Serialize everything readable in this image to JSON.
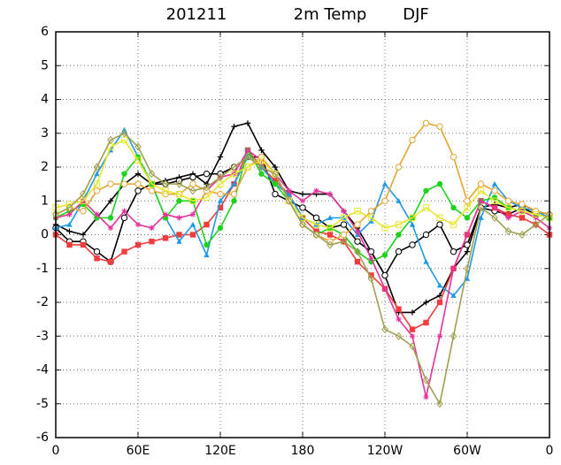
{
  "chart_data": {
    "type": "line",
    "title_parts": [
      "201211",
      "2m Temp",
      "DJF"
    ],
    "x": [
      0,
      10,
      20,
      30,
      40,
      50,
      60,
      70,
      80,
      90,
      100,
      110,
      120,
      130,
      140,
      150,
      160,
      170,
      180,
      190,
      200,
      210,
      220,
      230,
      240,
      250,
      260,
      270,
      280,
      290,
      300,
      310,
      320,
      330,
      340,
      350,
      360
    ],
    "xlim": [
      0,
      360
    ],
    "xticks": [
      0,
      {
        "value": 60,
        "label": "60E"
      },
      {
        "value": 120,
        "label": "120E"
      },
      180,
      {
        "value": 240,
        "label": "120W"
      },
      {
        "value": 300,
        "label": "60W"
      },
      {
        "value": 360,
        "label": "0"
      }
    ],
    "ylim": [
      -6,
      6
    ],
    "yticks": [
      -6,
      -5,
      -4,
      -3,
      -2,
      -1,
      0,
      1,
      2,
      3,
      4,
      5,
      6
    ],
    "grid": true,
    "series": [
      {
        "color": "#000000",
        "marker": "plus",
        "values": [
          0.3,
          0.1,
          0,
          0.5,
          1,
          1.5,
          1.8,
          1.5,
          1.6,
          1.7,
          1.8,
          1.5,
          2.3,
          3.2,
          3.3,
          2.5,
          2,
          1.3,
          1.2,
          1.2,
          1.2,
          0.7,
          0.2,
          -0.5,
          -1.2,
          -2.3,
          -2.3,
          -2,
          -1.8,
          -1,
          -0.5,
          0.8,
          0.9,
          0.8,
          0.9,
          0.7,
          0.6
        ]
      },
      {
        "color": "#000000",
        "marker": "circle-open",
        "values": [
          0.2,
          -0.2,
          -0.2,
          -0.5,
          -0.8,
          0.5,
          1.3,
          1.5,
          1.5,
          1.6,
          1.7,
          1.8,
          1.8,
          2,
          2.3,
          2.3,
          1.2,
          1,
          0.8,
          0.5,
          0.2,
          0.3,
          -0.2,
          -0.5,
          -1.2,
          -0.5,
          -0.3,
          0,
          0.3,
          -0.5,
          -0.3,
          0.8,
          0.7,
          0.6,
          0.8,
          0.6,
          0.5
        ]
      },
      {
        "color": "#f03c3c",
        "marker": "square",
        "values": [
          0,
          -0.3,
          -0.3,
          -0.7,
          -0.8,
          -0.5,
          -0.3,
          -0.2,
          -0.1,
          0,
          0,
          0.3,
          0.8,
          1.5,
          2.5,
          2,
          1.6,
          1.2,
          0.5,
          0.1,
          0,
          -0.2,
          -0.8,
          -1.2,
          -1.6,
          -2.2,
          -2.8,
          -2.6,
          -2,
          -1,
          0,
          1,
          0.8,
          0.6,
          0.5,
          0.3,
          0
        ]
      },
      {
        "color": "#1e9be6",
        "marker": "triangle",
        "values": [
          0.2,
          0.3,
          1,
          1.8,
          2.5,
          3.1,
          2.3,
          1.5,
          0.5,
          -0.2,
          0.3,
          -0.6,
          1,
          1.5,
          2.3,
          2,
          1.5,
          1.2,
          0.5,
          0.3,
          0.5,
          0.5,
          0,
          0.4,
          1.5,
          1,
          0.3,
          -0.8,
          -1.5,
          -1.8,
          -1.3,
          0.5,
          1.5,
          1,
          0.8,
          0.7,
          0.5
        ]
      },
      {
        "color": "#1ed21e",
        "marker": "circle",
        "values": [
          0.5,
          0.7,
          0.9,
          0.5,
          0.5,
          1.8,
          2.3,
          1.5,
          0.5,
          1,
          1,
          -0.3,
          0.2,
          1,
          2.5,
          1.8,
          1.5,
          1,
          0.3,
          0,
          0.2,
          0,
          -0.5,
          -0.8,
          -0.6,
          0,
          0.5,
          1.3,
          1.5,
          0.8,
          0.5,
          1,
          1.1,
          0.8,
          0.7,
          0.6,
          0.5
        ]
      },
      {
        "color": "#e6329b",
        "marker": "star",
        "values": [
          0.5,
          0.6,
          1,
          0.6,
          0.2,
          0.7,
          0.3,
          0.2,
          0.6,
          0.5,
          0.6,
          1.3,
          1.7,
          1.8,
          2.5,
          2.2,
          1.8,
          1.3,
          1,
          1.3,
          1.2,
          0.7,
          0.1,
          -0.7,
          -1.6,
          -2.5,
          -3,
          -4.8,
          -3,
          -1,
          0,
          1,
          0.8,
          0.5,
          0.7,
          0.5,
          0.2
        ]
      },
      {
        "color": "#e6a532",
        "marker": "circle-open",
        "values": [
          0.6,
          0.8,
          0.7,
          1.3,
          1.5,
          1.5,
          1.5,
          1.3,
          1.2,
          1.2,
          1.5,
          1.3,
          1.2,
          1.2,
          2,
          2.3,
          1.8,
          1,
          0.3,
          0,
          -0.2,
          0,
          0.3,
          0.7,
          1,
          2,
          2.8,
          3.3,
          3.2,
          2.3,
          1,
          1.5,
          1.3,
          1,
          0.9,
          0.7,
          0.6
        ]
      },
      {
        "color": "#e6e632",
        "marker": "square-open",
        "values": [
          0.8,
          0.9,
          1,
          1.5,
          2.6,
          2.8,
          2.2,
          1.5,
          1.3,
          1.2,
          1,
          1.1,
          1.5,
          1.8,
          2,
          2.2,
          1.8,
          1,
          0.5,
          0.3,
          0.2,
          0.5,
          0.7,
          0.5,
          0.2,
          0.3,
          0.5,
          0.8,
          0.5,
          0.3,
          0.8,
          1.3,
          1,
          0.8,
          0.7,
          0.6,
          0.5
        ]
      },
      {
        "color": "#a0a050",
        "marker": "diamond-open",
        "values": [
          0.6,
          0.8,
          1.2,
          2,
          2.8,
          3,
          2.6,
          1.8,
          1.5,
          1.5,
          1.3,
          1.4,
          1.7,
          2,
          2.3,
          2,
          1.8,
          1,
          0.3,
          0,
          -0.3,
          -0.2,
          -0.5,
          -1.3,
          -2.8,
          -3,
          -3.3,
          -4.3,
          -5,
          -3,
          -1,
          0.8,
          0.5,
          0.1,
          0,
          0.3,
          0.6
        ]
      }
    ]
  }
}
